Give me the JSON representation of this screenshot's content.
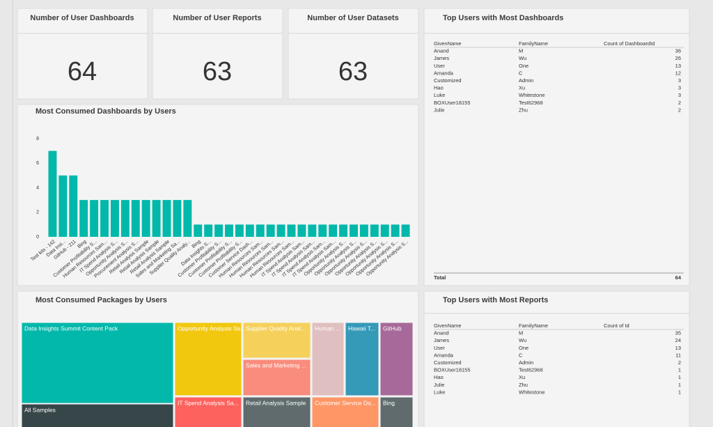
{
  "cards": [
    {
      "title": "Number of User Dashboards",
      "value": 64
    },
    {
      "title": "Number of User Reports",
      "value": 63
    },
    {
      "title": "Number of User Datasets",
      "value": 63
    }
  ],
  "chart_data": {
    "type": "bar",
    "title": "Most Consumed Dashboards by Users",
    "categories": [
      "Test kits - 142",
      "Data Insi...",
      "GitHub - 211",
      "Bing",
      "Customer Profitability S...",
      "Human Resources Sam...",
      "IT Spend Analysis S...",
      "Opportunity Analysis S...",
      "Procurement Analysis S...",
      "Retail Analysis Sample",
      "Retail Analysis Sample",
      "Retail Analysis Sample",
      "Sales and Marketing Sa...",
      "Supplier Quality Analy...",
      "Bing",
      "Data Insights S...",
      "Customer Profitability S...",
      "Customer Profitability S...",
      "Customer Profitability S...",
      "Customer Service Dash...",
      "Human Resources Sam...",
      "Human Resources Sam...",
      "Human Resources Sam...",
      "Human Resources Sam...",
      "IT Spend Analysis Sam...",
      "IT Spend Analysis Sam...",
      "IT Spend Analysis Sam...",
      "IT Spend Analysis Sam...",
      "Opportunity Analysis S...",
      "Opportunity Analysis S...",
      "Opportunity Analysis S...",
      "Opportunity Analysis S...",
      "Opportunity Analysis S...",
      "Opportunity Analysis S...",
      "Opportunity Analysis S..."
    ],
    "values": [
      7,
      5,
      5,
      3,
      3,
      3,
      3,
      3,
      3,
      3,
      3,
      3,
      3,
      3,
      1,
      1,
      1,
      1,
      1,
      1,
      1,
      1,
      1,
      1,
      1,
      1,
      1,
      1,
      1,
      1,
      1,
      1,
      1,
      1,
      1
    ],
    "color": "#01B8AA",
    "ylim": [
      0,
      8
    ],
    "yticks": [
      0,
      2,
      4,
      6,
      8
    ],
    "grid": false
  },
  "dashboard_users": {
    "title": "Top Users with Most Dashboards",
    "columns": [
      "GivenName",
      "FamilyName",
      "Count of DashboardId"
    ],
    "rows": [
      [
        "Anand",
        "M",
        36
      ],
      [
        "James",
        "Wu",
        26
      ],
      [
        "User",
        "One",
        13
      ],
      [
        "Amanda",
        "C",
        12
      ],
      [
        "Customized",
        "Admin",
        3
      ],
      [
        "Hao",
        "Xu",
        3
      ],
      [
        "Luke",
        "Whitestone",
        3
      ],
      [
        "BOXUser18155",
        "Test62968",
        2
      ],
      [
        "Julie",
        "Zhu",
        2
      ]
    ],
    "total": [
      "Total",
      64
    ]
  },
  "treemap": {
    "title": "Most Consumed Packages by Users",
    "tiles": [
      {
        "label": "Data Insights Summit Content Pack",
        "color": "#01B8AA"
      },
      {
        "label": "All Samples",
        "color": "#374649"
      },
      {
        "label": "Opportunity Analysis Sa...",
        "color": "#F2C80F"
      },
      {
        "label": "IT Spend Analysis Sa...",
        "color": "#FD625E"
      },
      {
        "label": "Supplier Quality Anal...",
        "color": "#F5D05A"
      },
      {
        "label": "Sales and Marketing ...",
        "color": "#F98C7C"
      },
      {
        "label": "Retail Analysis Sample",
        "color": "#5F6B6D"
      },
      {
        "label": "Human ...",
        "color": "#DFBFBF"
      },
      {
        "label": "Customer Service Da...",
        "color": "#FE9666"
      },
      {
        "label": "Hawaii T...",
        "color": "#3599B8"
      },
      {
        "label": "GitHub",
        "color": "#A66999"
      },
      {
        "label": "Bing",
        "color": "#5F6B6D"
      }
    ]
  },
  "report_users": {
    "title": "Top Users with Most Reports",
    "columns": [
      "GivenName",
      "FamilyName",
      "Count of Id"
    ],
    "rows": [
      [
        "Anand",
        "M",
        35
      ],
      [
        "James",
        "Wu",
        24
      ],
      [
        "User",
        "One",
        13
      ],
      [
        "Amanda",
        "C",
        11
      ],
      [
        "Customized",
        "Admin",
        2
      ],
      [
        "BOXUser18155",
        "Test62968",
        1
      ],
      [
        "Hao",
        "Xu",
        1
      ],
      [
        "Julie",
        "Zhu",
        1
      ],
      [
        "Luke",
        "Whitestone",
        1
      ]
    ]
  }
}
